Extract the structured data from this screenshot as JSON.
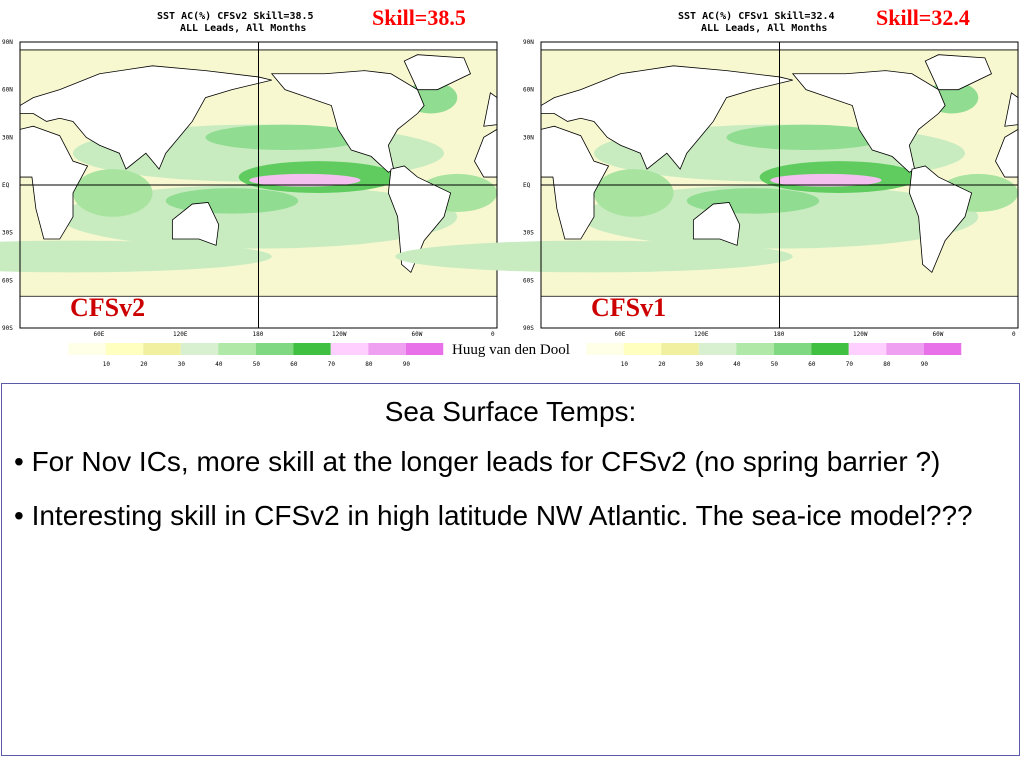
{
  "maps": [
    {
      "title": "SST AC(%) CFSv2 Skill=38.5",
      "subtitle": "ALL Leads, All Months",
      "skill": "Skill=38.5",
      "model": "CFSv2"
    },
    {
      "title": "SST AC(%) CFSv1 Skill=32.4",
      "subtitle": "ALL Leads, All Months",
      "skill": "Skill=32.4",
      "model": "CFSv1"
    }
  ],
  "lat_labels": [
    "90N",
    "60N",
    "30N",
    "EQ",
    "30S",
    "60S",
    "90S"
  ],
  "lon_labels": [
    "60E",
    "120E",
    "180",
    "120W",
    "60W",
    "0"
  ],
  "colorbar": {
    "ticks": [
      10,
      20,
      30,
      40,
      50,
      60,
      70,
      80,
      90
    ]
  },
  "credit": "Huug van den Dool",
  "text": {
    "heading": "Sea Surface Temps:",
    "bullets": [
      "• For Nov ICs, more skill at the longer leads for CFSv2 (no spring barrier ?)",
      "• Interesting skill in CFSv2 in high latitude NW Atlantic. The sea-ice model???"
    ]
  }
}
